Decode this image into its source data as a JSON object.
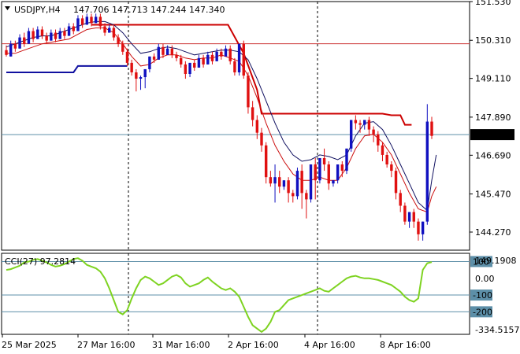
{
  "header": {
    "symbol": "USDJPY,H4",
    "open": "147.706",
    "high": "147.713",
    "low": "147.244",
    "close": "147.340"
  },
  "indicator": {
    "label": "CCI(27) 97.2814",
    "max_label": "149.1908",
    "min_label": "-334.5157",
    "level_labels": [
      "100",
      "0.00",
      "-100",
      "-200"
    ]
  },
  "colors": {
    "bull": "#1010c0",
    "bear": "#e01010",
    "price_line": "#5d8fa8",
    "cci": "#7ed321",
    "envelope_upper": "#cc0000",
    "envelope_lower": "#1010a0"
  },
  "chart_data": {
    "type": "candlestick",
    "price_axis": {
      "ylim": [
        143.7,
        151.53
      ],
      "ticks": [
        "151.530",
        "150.310",
        "149.110",
        "147.890",
        "146.690",
        "145.470",
        "144.270"
      ],
      "current_price_label": "147.340"
    },
    "x_labels": [
      "25 Mar 2025",
      "27 Mar 16:00",
      "31 Mar 16:00",
      "2 Apr 16:00",
      "4 Apr 16:00",
      "8 Apr 16:00"
    ],
    "candles": [
      [
        150.0,
        150.15,
        149.85,
        149.8
      ],
      [
        149.8,
        149.9,
        150.2,
        150.3
      ],
      [
        150.2,
        150.3,
        150.05,
        149.95
      ],
      [
        150.05,
        150.2,
        150.4,
        150.5
      ],
      [
        150.4,
        150.55,
        150.2,
        150.1
      ],
      [
        150.2,
        150.3,
        150.6,
        150.7
      ],
      [
        150.6,
        150.7,
        150.35,
        150.25
      ],
      [
        150.35,
        150.45,
        150.65,
        150.75
      ],
      [
        150.65,
        150.75,
        150.45,
        150.35
      ],
      [
        150.45,
        150.55,
        150.3,
        150.2
      ],
      [
        150.3,
        150.4,
        150.55,
        150.65
      ],
      [
        150.55,
        150.65,
        150.35,
        150.25
      ],
      [
        150.35,
        150.45,
        150.6,
        150.7
      ],
      [
        150.6,
        150.7,
        150.45,
        150.35
      ],
      [
        150.45,
        150.55,
        150.75,
        150.85
      ],
      [
        150.75,
        150.85,
        150.6,
        150.5
      ],
      [
        150.6,
        150.7,
        151.0,
        151.1
      ],
      [
        151.0,
        151.1,
        150.8,
        150.7
      ],
      [
        150.8,
        150.9,
        151.05,
        151.15
      ],
      [
        151.05,
        151.15,
        150.85,
        150.75
      ],
      [
        150.85,
        150.95,
        151.05,
        151.15
      ],
      [
        151.05,
        151.15,
        150.75,
        150.65
      ],
      [
        150.75,
        150.85,
        150.55,
        150.45
      ],
      [
        150.55,
        150.65,
        150.7,
        150.8
      ],
      [
        150.7,
        150.8,
        150.4,
        150.3
      ],
      [
        150.4,
        150.5,
        150.2,
        150.1
      ],
      [
        150.2,
        150.3,
        149.95,
        149.85
      ],
      [
        149.95,
        150.05,
        149.6,
        149.5
      ],
      [
        149.6,
        149.7,
        149.3,
        149.2
      ],
      [
        149.3,
        149.4,
        149.1,
        148.7
      ],
      [
        149.1,
        149.2,
        149.15,
        148.75
      ],
      [
        149.15,
        149.25,
        149.4,
        148.8
      ],
      [
        149.4,
        149.5,
        149.8,
        149.3
      ],
      [
        149.8,
        149.9,
        149.7,
        149.6
      ],
      [
        149.7,
        149.8,
        150.1,
        150.2
      ],
      [
        150.1,
        150.2,
        149.85,
        149.75
      ],
      [
        149.85,
        149.95,
        150.05,
        150.15
      ],
      [
        150.05,
        150.15,
        149.85,
        149.75
      ],
      [
        149.85,
        149.95,
        149.75,
        149.65
      ],
      [
        149.75,
        149.85,
        149.55,
        149.45
      ],
      [
        149.55,
        149.65,
        149.25,
        149.1
      ],
      [
        149.25,
        149.35,
        149.6,
        149.15
      ],
      [
        149.6,
        149.7,
        149.45,
        149.35
      ],
      [
        149.45,
        149.55,
        149.75,
        149.85
      ],
      [
        149.75,
        149.85,
        149.55,
        149.45
      ],
      [
        149.55,
        149.65,
        149.85,
        149.95
      ],
      [
        149.85,
        149.95,
        149.65,
        149.55
      ],
      [
        149.65,
        149.75,
        149.95,
        150.05
      ],
      [
        149.95,
        150.05,
        149.8,
        149.7
      ],
      [
        149.8,
        149.9,
        150.05,
        150.15
      ],
      [
        150.05,
        150.15,
        149.65,
        149.55
      ],
      [
        149.65,
        149.75,
        149.3,
        149.2
      ],
      [
        149.3,
        149.4,
        150.2,
        149.2
      ],
      [
        150.2,
        150.3,
        149.2,
        149.1
      ],
      [
        149.2,
        149.3,
        148.2,
        148.0
      ],
      [
        148.2,
        148.4,
        147.8,
        147.6
      ],
      [
        147.8,
        147.95,
        147.4,
        147.2
      ],
      [
        147.4,
        147.55,
        147.0,
        146.8
      ],
      [
        147.0,
        147.1,
        146.0,
        145.8
      ],
      [
        146.0,
        146.2,
        145.8,
        145.7
      ],
      [
        145.8,
        146.4,
        146.0,
        145.2
      ],
      [
        146.0,
        146.2,
        145.7,
        145.5
      ],
      [
        145.7,
        145.9,
        145.9,
        145.6
      ],
      [
        145.9,
        146.0,
        145.5,
        145.2
      ],
      [
        145.5,
        145.6,
        145.4,
        145.2
      ],
      [
        145.4,
        146.3,
        146.2,
        145.3
      ],
      [
        146.2,
        146.4,
        145.5,
        145.0
      ],
      [
        145.5,
        145.6,
        145.3,
        144.7
      ],
      [
        145.3,
        145.4,
        146.4,
        145.2
      ],
      [
        146.4,
        146.6,
        145.9,
        145.3
      ],
      [
        145.9,
        146.0,
        146.6,
        145.8
      ],
      [
        146.6,
        146.9,
        146.4,
        146.2
      ],
      [
        146.4,
        146.5,
        145.8,
        145.6
      ],
      [
        145.8,
        145.9,
        145.9,
        145.7
      ],
      [
        145.9,
        146.0,
        146.4,
        145.8
      ],
      [
        146.4,
        146.5,
        146.2,
        146.0
      ],
      [
        146.2,
        146.3,
        146.9,
        146.1
      ],
      [
        146.9,
        147.0,
        147.8,
        146.8
      ],
      [
        147.8,
        147.95,
        147.7,
        147.5
      ],
      [
        147.7,
        147.8,
        147.65,
        147.4
      ],
      [
        147.65,
        147.75,
        147.8,
        147.5
      ],
      [
        147.8,
        147.9,
        147.5,
        147.3
      ],
      [
        147.5,
        147.6,
        147.35,
        147.1
      ],
      [
        147.35,
        147.45,
        147.0,
        146.8
      ],
      [
        147.0,
        147.1,
        146.7,
        146.5
      ],
      [
        146.7,
        146.8,
        146.4,
        146.3
      ],
      [
        146.4,
        146.5,
        146.2,
        146.0
      ],
      [
        146.2,
        146.3,
        145.5,
        145.3
      ],
      [
        145.5,
        145.6,
        145.1,
        144.9
      ],
      [
        145.1,
        145.2,
        144.6,
        144.5
      ],
      [
        144.6,
        144.7,
        144.9,
        144.4
      ],
      [
        144.9,
        145.0,
        144.6,
        144.4
      ],
      [
        144.6,
        144.7,
        144.2,
        144.0
      ],
      [
        144.2,
        144.3,
        144.6,
        144.0
      ],
      [
        144.6,
        148.3,
        147.75,
        144.5
      ],
      [
        147.75,
        147.9,
        147.3,
        147.2
      ]
    ],
    "envelope_upper": [
      [
        19,
        150.8
      ],
      [
        19,
        150.8
      ],
      [
        20,
        150.8
      ],
      [
        20,
        150.8
      ],
      [
        20,
        150.8
      ],
      [
        20,
        150.8
      ],
      [
        20,
        150.8
      ],
      [
        20,
        150.8
      ],
      [
        20,
        150.8
      ],
      [
        20,
        150.8
      ],
      [
        20,
        150.8
      ],
      [
        20,
        150.8
      ],
      [
        20,
        150.8
      ],
      [
        20,
        150.8
      ],
      [
        20,
        150.8
      ],
      [
        20,
        150.8
      ],
      [
        20,
        150.8
      ],
      [
        20,
        150.8
      ],
      [
        20,
        150.8
      ],
      [
        20,
        150.8
      ],
      [
        20,
        150.8
      ],
      [
        20,
        150.8
      ],
      [
        20,
        150.8
      ],
      [
        20,
        150.8
      ]
    ],
    "upper_step": [
      [
        19,
        150.8
      ],
      [
        49.5,
        150.8
      ],
      [
        53,
        149.9
      ],
      [
        56,
        148.75
      ],
      [
        57,
        148.0
      ],
      [
        77,
        148.0
      ],
      [
        79,
        148.0
      ],
      [
        84,
        148.0
      ],
      [
        86,
        147.95
      ],
      [
        88,
        147.95
      ],
      [
        89,
        147.65
      ],
      [
        90.5,
        147.65
      ]
    ],
    "lower_step": [
      [
        0,
        149.3
      ],
      [
        15,
        149.3
      ],
      [
        16,
        149.5
      ],
      [
        27,
        149.5
      ]
    ],
    "reference_line": 150.2,
    "ma_fast": [
      [
        0,
        149.9
      ],
      [
        2,
        149.9
      ],
      [
        4,
        150.0
      ],
      [
        6,
        150.1
      ],
      [
        8,
        150.2
      ],
      [
        10,
        150.25
      ],
      [
        12,
        150.3
      ],
      [
        14,
        150.35
      ],
      [
        16,
        150.5
      ],
      [
        18,
        150.65
      ],
      [
        20,
        150.7
      ],
      [
        22,
        150.7
      ],
      [
        24,
        150.55
      ],
      [
        26,
        150.2
      ],
      [
        28,
        149.8
      ],
      [
        30,
        149.5
      ],
      [
        32,
        149.55
      ],
      [
        34,
        149.75
      ],
      [
        36,
        149.85
      ],
      [
        38,
        149.85
      ],
      [
        40,
        149.75
      ],
      [
        42,
        149.7
      ],
      [
        44,
        149.75
      ],
      [
        46,
        149.75
      ],
      [
        48,
        149.85
      ],
      [
        50,
        149.75
      ],
      [
        52,
        149.65
      ],
      [
        54,
        149.2
      ],
      [
        56,
        148.5
      ],
      [
        58,
        147.7
      ],
      [
        60,
        147.0
      ],
      [
        62,
        146.5
      ],
      [
        64,
        146.1
      ],
      [
        66,
        145.9
      ],
      [
        68,
        145.9
      ],
      [
        70,
        146.0
      ],
      [
        72,
        145.9
      ],
      [
        74,
        145.9
      ],
      [
        76,
        146.3
      ],
      [
        78,
        146.9
      ],
      [
        80,
        147.3
      ],
      [
        82,
        147.35
      ],
      [
        84,
        147.1
      ],
      [
        86,
        146.7
      ],
      [
        88,
        146.1
      ],
      [
        90,
        145.5
      ],
      [
        92,
        145.0
      ],
      [
        94,
        144.9
      ],
      [
        95,
        145.4
      ],
      [
        96,
        145.7
      ]
    ],
    "ma_slow": [
      [
        0,
        150.1
      ],
      [
        2,
        150.2
      ],
      [
        4,
        150.3
      ],
      [
        6,
        150.4
      ],
      [
        8,
        150.45
      ],
      [
        10,
        150.45
      ],
      [
        12,
        150.55
      ],
      [
        14,
        150.65
      ],
      [
        16,
        150.75
      ],
      [
        18,
        150.85
      ],
      [
        20,
        150.9
      ],
      [
        22,
        150.9
      ],
      [
        24,
        150.8
      ],
      [
        26,
        150.55
      ],
      [
        28,
        150.2
      ],
      [
        30,
        149.9
      ],
      [
        32,
        149.95
      ],
      [
        34,
        150.05
      ],
      [
        36,
        150.1
      ],
      [
        38,
        150.05
      ],
      [
        40,
        149.95
      ],
      [
        42,
        149.85
      ],
      [
        44,
        149.9
      ],
      [
        46,
        149.95
      ],
      [
        48,
        150.0
      ],
      [
        50,
        150.0
      ],
      [
        52,
        149.95
      ],
      [
        54,
        149.7
      ],
      [
        56,
        149.1
      ],
      [
        58,
        148.4
      ],
      [
        60,
        147.7
      ],
      [
        62,
        147.1
      ],
      [
        64,
        146.7
      ],
      [
        66,
        146.5
      ],
      [
        68,
        146.55
      ],
      [
        70,
        146.7
      ],
      [
        72,
        146.65
      ],
      [
        74,
        146.55
      ],
      [
        76,
        146.7
      ],
      [
        78,
        147.3
      ],
      [
        80,
        147.7
      ],
      [
        82,
        147.75
      ],
      [
        84,
        147.5
      ],
      [
        86,
        147.0
      ],
      [
        88,
        146.4
      ],
      [
        90,
        145.8
      ],
      [
        92,
        145.2
      ],
      [
        94,
        144.95
      ],
      [
        95,
        145.9
      ],
      [
        96,
        146.7
      ]
    ],
    "cci": {
      "ylim": [
        -334.5157,
        149.1908
      ],
      "levels": [
        100,
        0,
        -100,
        -200
      ],
      "values": [
        50,
        55,
        65,
        75,
        95,
        100,
        110,
        115,
        105,
        95,
        80,
        70,
        75,
        85,
        100,
        115,
        120,
        105,
        80,
        70,
        60,
        40,
        0,
        -60,
        -130,
        -200,
        -215,
        -190,
        -120,
        -60,
        -10,
        10,
        0,
        -20,
        -40,
        -30,
        -10,
        10,
        20,
        5,
        -30,
        -50,
        -40,
        -30,
        -10,
        5,
        -20,
        -40,
        -60,
        -70,
        -60,
        -80,
        -110,
        -170,
        -230,
        -280,
        -300,
        -320,
        -300,
        -260,
        -200,
        -190,
        -160,
        -130,
        -120,
        -110,
        -100,
        -90,
        -80,
        -70,
        -60,
        -75,
        -80,
        -60,
        -40,
        -20,
        0,
        10,
        15,
        5,
        0,
        0,
        -5,
        -10,
        -20,
        -30,
        -40,
        -60,
        -80,
        -110,
        -130,
        -140,
        -120,
        50,
        90,
        97.28
      ]
    }
  }
}
